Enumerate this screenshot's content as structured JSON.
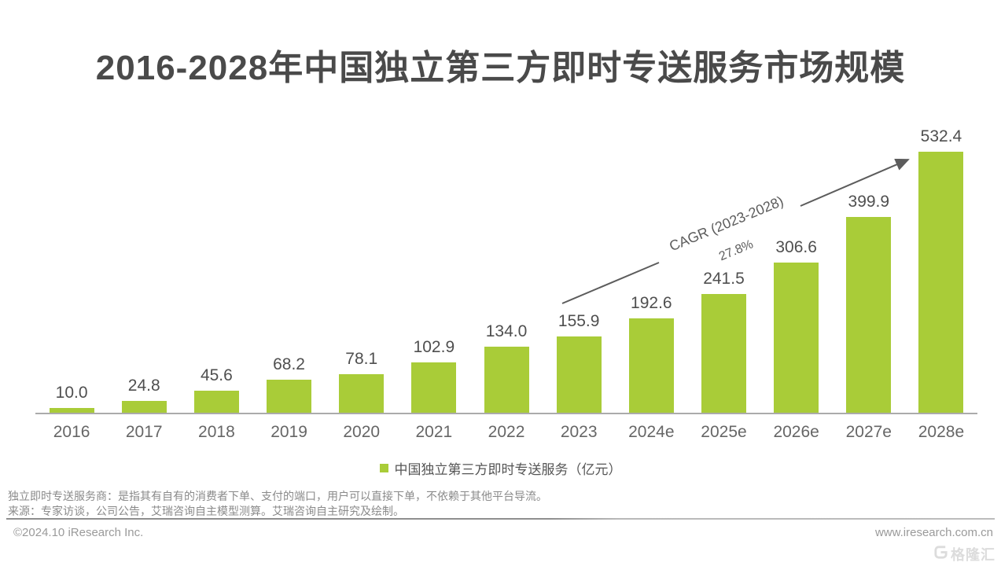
{
  "title": "2016-2028年中国独立第三方即时专送服务市场规模",
  "chart_data": {
    "type": "bar",
    "categories": [
      "2016",
      "2017",
      "2018",
      "2019",
      "2020",
      "2021",
      "2022",
      "2023",
      "2024e",
      "2025e",
      "2026e",
      "2027e",
      "2028e"
    ],
    "values": [
      10.0,
      24.8,
      45.6,
      68.2,
      78.1,
      102.9,
      134.0,
      155.9,
      192.6,
      241.5,
      306.6,
      399.9,
      532.4
    ],
    "title": "2016-2028年中国独立第三方即时专送服务市场规模",
    "xlabel": "",
    "ylabel": "",
    "unit": "亿元",
    "ylim": [
      0,
      560
    ],
    "grid": false,
    "bar_color": "#a9cc38",
    "legend_position": "bottom",
    "legend": [
      "中国独立第三方即时专送服务（亿元）"
    ],
    "annotation": {
      "label": "CAGR (2023-2028)",
      "value": "27.8%",
      "from_category": "2023",
      "to_category": "2028e"
    }
  },
  "legend": {
    "label": "中国独立第三方即时专送服务（亿元）"
  },
  "annotation": {
    "cagr_label": "CAGR (2023-2028)",
    "cagr_value": "27.8%"
  },
  "notes": {
    "definition": "独立即时专送服务商：是指其有自有的消费者下单、支付的端口，用户可以直接下单，不依赖于其他平台导流。",
    "source": "来源：专家访谈，公司公告，艾瑞咨询自主模型测算。艾瑞咨询自主研究及绘制。"
  },
  "footer": {
    "copyright": "©2024.10 iResearch Inc.",
    "website": "www.iresearch.com.cn"
  },
  "watermark": {
    "text": "格隆汇"
  },
  "colors": {
    "bar": "#a9cc38",
    "title": "#4a4a4a",
    "value_label": "#4f4f4f",
    "axis_label": "#666666",
    "annotation": "#5c5c5c",
    "baseline": "#ababab",
    "notes": "#8a8a8a",
    "footer": "#9a9a9a"
  }
}
